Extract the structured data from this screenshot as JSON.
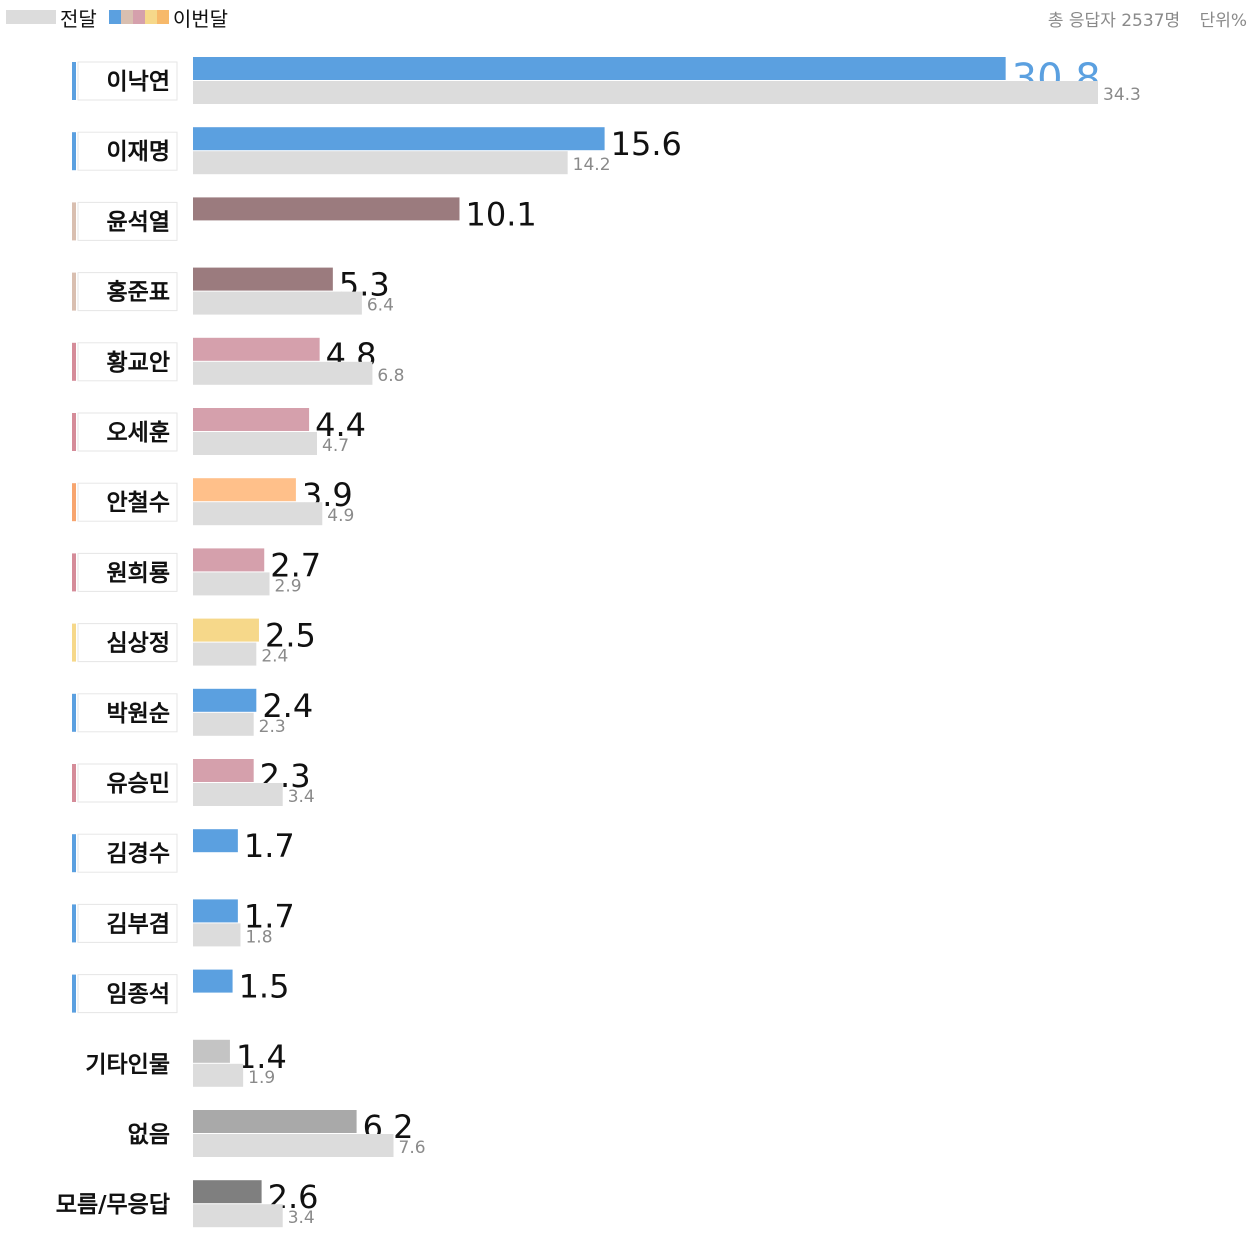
{
  "legend": {
    "previous_label": "전달",
    "current_label": "이번달"
  },
  "meta": {
    "respondents": "총 응답자 2537명",
    "unit": "단위%"
  },
  "colors": {
    "previous": "#dcdcdc",
    "highlight_value": "#5ba0e0",
    "legend_current": [
      "#5ba0e0",
      "#d9bfb0",
      "#d5a0ac",
      "#f6d88a",
      "#f7b96a"
    ]
  },
  "chart_data": {
    "type": "bar",
    "orientation": "horizontal",
    "categories": [
      "이낙연",
      "이재명",
      "윤석열",
      "홍준표",
      "황교안",
      "오세훈",
      "안철수",
      "원희룡",
      "심상정",
      "박원순",
      "유승민",
      "김경수",
      "김부겸",
      "임종석",
      "기타인물",
      "없음",
      "모름/무응답"
    ],
    "series": [
      {
        "name": "이번달",
        "values": [
          30.8,
          15.6,
          10.1,
          5.3,
          4.8,
          4.4,
          3.9,
          2.7,
          2.5,
          2.4,
          2.3,
          1.7,
          1.7,
          1.5,
          1.4,
          6.2,
          2.6
        ]
      },
      {
        "name": "전달",
        "values": [
          34.3,
          14.2,
          null,
          6.4,
          6.8,
          4.7,
          4.9,
          2.9,
          2.4,
          2.3,
          3.4,
          null,
          1.8,
          null,
          1.9,
          7.6,
          3.4
        ]
      }
    ],
    "bar_colors": [
      "#5ba0e0",
      "#5ba0e0",
      "#9b7b7e",
      "#9b7b7e",
      "#d5a0ac",
      "#d5a0ac",
      "#ffc08a",
      "#d5a0ac",
      "#f6d88a",
      "#5ba0e0",
      "#d5a0ac",
      "#5ba0e0",
      "#5ba0e0",
      "#5ba0e0",
      "#c4c4c4",
      "#a9a9a9",
      "#7f7f7f"
    ],
    "party_colors": [
      "#5ba0e0",
      "#5ba0e0",
      "#d9bfb0",
      "#d9bfb0",
      "#d58c99",
      "#d58c99",
      "#f7a56f",
      "#d58c99",
      "#f6d88a",
      "#5ba0e0",
      "#d58c99",
      "#5ba0e0",
      "#5ba0e0",
      "#5ba0e0",
      null,
      null,
      null
    ],
    "xlim": [
      0,
      34.3
    ]
  }
}
